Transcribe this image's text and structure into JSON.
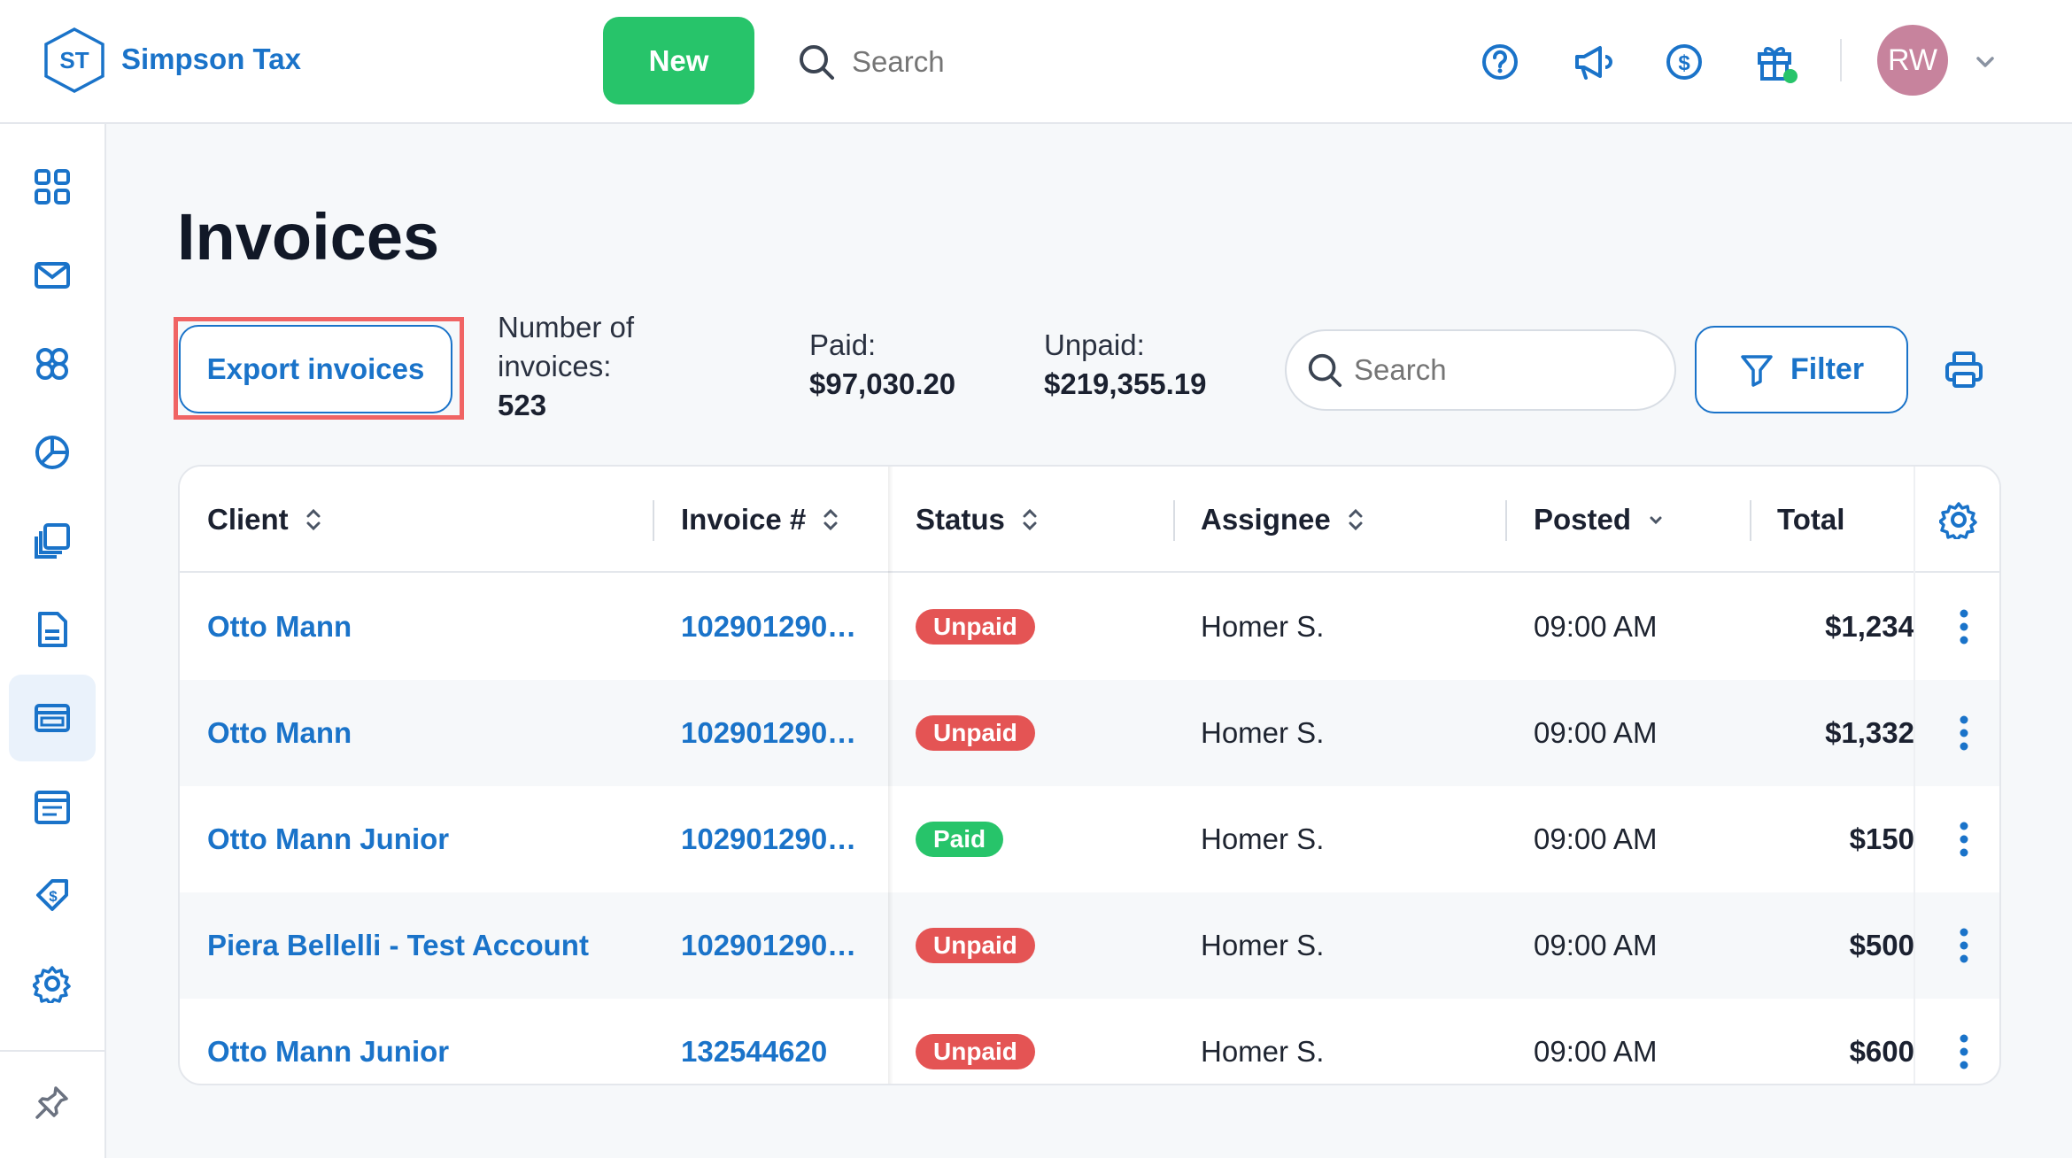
{
  "app": {
    "logo_initials": "ST",
    "brand": "Simpson Tax"
  },
  "topbar": {
    "new_label": "New",
    "search_placeholder": "Search",
    "icons": [
      "help-icon",
      "megaphone-icon",
      "billing-icon",
      "gift-icon"
    ],
    "avatar_initials": "RW"
  },
  "sidebar": {
    "items": [
      "dashboard-icon",
      "mail-icon",
      "clients-icon",
      "reports-icon",
      "documents-icon",
      "file-icon",
      "invoices-icon",
      "calendar-icon",
      "tag-icon",
      "settings-icon"
    ],
    "active": "invoices-icon",
    "pin": "pin-icon"
  },
  "page": {
    "title": "Invoices",
    "export_label": "Export invoices",
    "stats": {
      "count_label": "Number of invoices:",
      "count_value": "523",
      "paid_label": "Paid:",
      "paid_value": "$97,030.20",
      "unpaid_label": "Unpaid:",
      "unpaid_value": "$219,355.19"
    },
    "search_placeholder": "Search",
    "filter_label": "Filter"
  },
  "table": {
    "columns": [
      "Client",
      "Invoice #",
      "Status",
      "Assignee",
      "Posted",
      "Total"
    ],
    "rows": [
      {
        "client": "Otto Mann",
        "invoice": "102901290…",
        "status": "Unpaid",
        "assignee": "Homer S.",
        "posted": "09:00 AM",
        "total": "$1,234"
      },
      {
        "client": "Otto Mann",
        "invoice": "102901290…",
        "status": "Unpaid",
        "assignee": "Homer S.",
        "posted": "09:00 AM",
        "total": "$1,332"
      },
      {
        "client": "Otto Mann Junior",
        "invoice": "102901290…",
        "status": "Paid",
        "assignee": "Homer S.",
        "posted": "09:00 AM",
        "total": "$150"
      },
      {
        "client": "Piera Bellelli - Test Account",
        "invoice": "102901290…",
        "status": "Unpaid",
        "assignee": "Homer S.",
        "posted": "09:00 AM",
        "total": "$500"
      },
      {
        "client": "Otto Mann Junior",
        "invoice": "132544620",
        "status": "Unpaid",
        "assignee": "Homer S.",
        "posted": "09:00 AM",
        "total": "$600"
      }
    ]
  },
  "colors": {
    "accent": "#1a73c9",
    "new_button": "#27c46a",
    "unpaid": "#e45454",
    "paid": "#27c46a",
    "highlight": "#f06464"
  }
}
